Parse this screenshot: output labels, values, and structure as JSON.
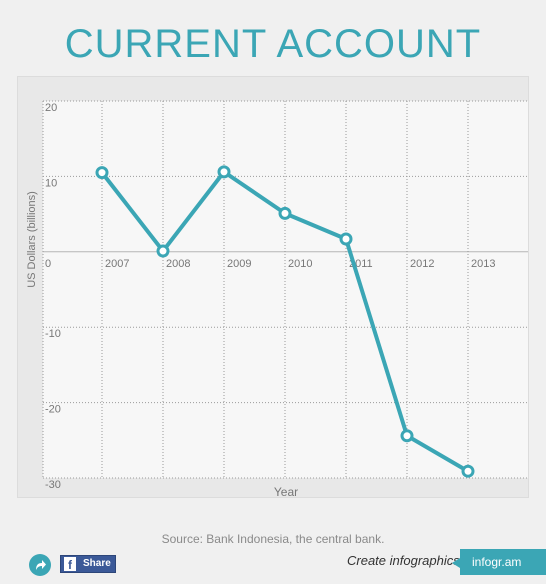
{
  "title": "CURRENT ACCOUNT",
  "source": "Source: Bank Indonesia, the central bank.",
  "footer": {
    "share_label": "Share",
    "create_text": "Create infographics",
    "brand": "infogr.am"
  },
  "colors": {
    "accent": "#3ba6b5",
    "facebook": "#3b5998"
  },
  "chart_data": {
    "type": "line",
    "title": "CURRENT ACCOUNT",
    "xlabel": "Year",
    "ylabel": "US Dollars (billions)",
    "categories": [
      "2007",
      "2008",
      "2009",
      "2010",
      "2011",
      "2012",
      "2013"
    ],
    "series": [
      {
        "values": [
          10.5,
          0.1,
          10.6,
          5.1,
          1.7,
          -24.4,
          -29.1
        ]
      }
    ],
    "ylim": [
      -30,
      20
    ],
    "yticks": [
      20,
      10,
      0,
      -10,
      -20,
      -30
    ],
    "origin_label": "0",
    "grid": true,
    "legend": "none"
  }
}
